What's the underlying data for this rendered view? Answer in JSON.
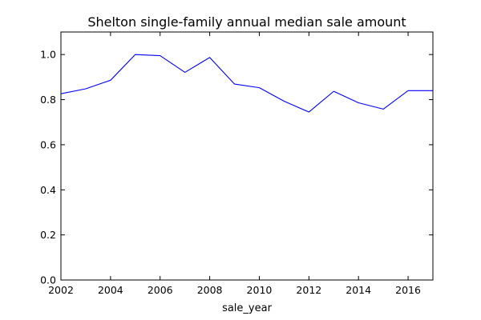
{
  "chart_data": {
    "type": "line",
    "title": "Shelton single-family annual median sale amount",
    "xlabel": "sale_year",
    "ylabel": "",
    "xlim": [
      2002,
      2017
    ],
    "ylim": [
      0.0,
      1.1
    ],
    "x_ticks": [
      2002,
      2004,
      2006,
      2008,
      2010,
      2012,
      2014,
      2016
    ],
    "y_ticks": [
      0.0,
      0.2,
      0.4,
      0.6,
      0.8,
      1.0
    ],
    "x_tick_labels": [
      "2002",
      "2004",
      "2006",
      "2008",
      "2010",
      "2012",
      "2014",
      "2016"
    ],
    "y_tick_labels": [
      "0.0",
      "0.2",
      "0.4",
      "0.6",
      "0.8",
      "1.0"
    ],
    "grid": false,
    "legend": "none",
    "series": [
      {
        "color": "#0000ff",
        "x": [
          2002,
          2003,
          2004,
          2005,
          2006,
          2007,
          2008,
          2009,
          2010,
          2011,
          2012,
          2013,
          2014,
          2015,
          2016,
          2017
        ],
        "values": [
          0.826,
          0.848,
          0.886,
          1.0,
          0.995,
          0.921,
          0.987,
          0.869,
          0.853,
          0.793,
          0.745,
          0.837,
          0.786,
          0.758,
          0.84,
          0.84
        ]
      }
    ]
  }
}
